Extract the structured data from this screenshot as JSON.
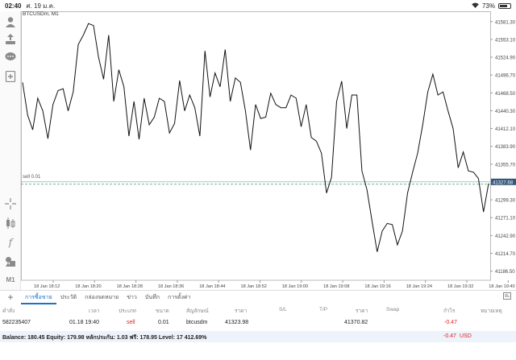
{
  "status_bar": {
    "time": "02:40",
    "date": "ศ. 19 ม.ค.",
    "battery": "73%",
    "battery_level": 0.73
  },
  "left_toolbar": {
    "icons": [
      "account-icon",
      "trade-icon",
      "chat-icon",
      "add-icon",
      "crosshair-icon",
      "indicators-icon",
      "function-icon",
      "objects-icon"
    ],
    "timeframe": "M1"
  },
  "chart_data": {
    "type": "line",
    "symbol_label": "BTCUSDm, M1",
    "x_ticks": [
      "18 Jan 18:12",
      "18 Jan 18:20",
      "18 Jan 18:28",
      "18 Jan 18:36",
      "18 Jan 18:44",
      "18 Jan 18:52",
      "18 Jan 19:00",
      "18 Jan 19:08",
      "18 Jan 19:16",
      "18 Jan 19:24",
      "18 Jan 19:32",
      "18 Jan 19:40"
    ],
    "y_ticks": [
      "41581.30",
      "41553.10",
      "41524.90",
      "41496.70",
      "41468.50",
      "41440.30",
      "41412.10",
      "41383.90",
      "41355.70",
      "41327.68",
      "41299.30",
      "41271.10",
      "41242.90",
      "41214.70",
      "41186.50"
    ],
    "ylim": [
      41172,
      41595
    ],
    "current_price": 41327.68,
    "sell_price": 41323.98,
    "sell_label": "sell 0.01",
    "series": [
      {
        "values": [
          41485,
          41433,
          41410,
          41460,
          41440,
          41396,
          41450,
          41472,
          41475,
          41440,
          41470,
          41545,
          41560,
          41578,
          41575,
          41525,
          41490,
          41560,
          41455,
          41505,
          41478,
          41400,
          41455,
          41395,
          41460,
          41418,
          41430,
          41460,
          41455,
          41405,
          41420,
          41488,
          41440,
          41465,
          41445,
          41400,
          41535,
          41462,
          41500,
          41478,
          41537,
          41455,
          41492,
          41485,
          41440,
          41378,
          41450,
          41428,
          41430,
          41468,
          41450,
          41445,
          41445,
          41465,
          41460,
          41415,
          41450,
          41398,
          41392,
          41373,
          41310,
          41335,
          41455,
          41487,
          41412,
          41465,
          41465,
          41345,
          41315,
          41265,
          41217,
          41250,
          41262,
          41260,
          41228,
          41250,
          41310,
          41343,
          41373,
          41418,
          41470,
          41498,
          41465,
          41470,
          41440,
          41412,
          41350,
          41375,
          41345,
          41343,
          41333,
          41280,
          41325
        ]
      }
    ]
  },
  "tabs": {
    "items": [
      "การซื้อขาย",
      "ประวัติ",
      "กล่องจดหมาย",
      "ข่าว",
      "บันทึก",
      "การตั้งค่า"
    ],
    "active_index": 0
  },
  "table": {
    "headers": {
      "ticket": "คำสั่ง",
      "time": "เวลา",
      "type": "ประเภท",
      "size": "ขนาด",
      "symbol": "สัญลักษณ์",
      "price": "ราคา",
      "sl": "S/L",
      "tp": "T/P",
      "price2": "ราคา",
      "swap": "Swap",
      "profit": "กำไร",
      "comment": "หมายเหตุ"
    },
    "row": {
      "ticket": "582235407",
      "time": "01.18 19:40",
      "type": "sell",
      "size": "0.01",
      "symbol": "btcusdm",
      "price": "41323.98",
      "price2": "41370.82",
      "profit": "-0.47"
    }
  },
  "balance_bar": {
    "text": "Balance: 180.45 Equity: 179.98 หลักประกัน: 1.03 ฟรี: 178.95 Level: 17 412.69%",
    "profit": "-0.47",
    "currency": "USD"
  },
  "colors": {
    "accent": "#1a73c8",
    "negative": "#d22222",
    "price_tag": "#34577a",
    "line": "#111111"
  }
}
